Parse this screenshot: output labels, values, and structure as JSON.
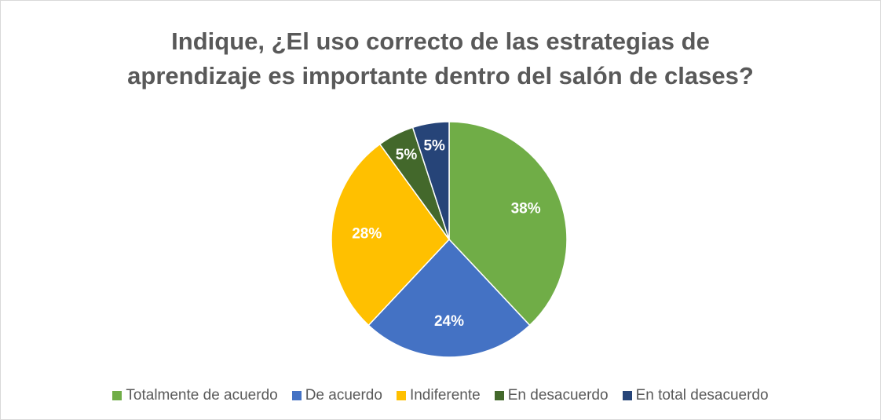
{
  "chart_data": {
    "type": "pie",
    "title": [
      "Indique, ¿El uso correcto de las estrategias de",
      "aprendizaje es importante dentro del salón de clases?"
    ],
    "categories": [
      "Totalmente de acuerdo",
      "De acuerdo",
      "Indiferente",
      "En desacuerdo",
      "En total desacuerdo"
    ],
    "values": [
      38,
      24,
      28,
      5,
      5
    ],
    "value_labels": [
      "38%",
      "24%",
      "28%",
      "5%",
      "5%"
    ],
    "colors": [
      "#70ad47",
      "#4472c4",
      "#ffc000",
      "#43682b",
      "#264478"
    ],
    "legend": "bottom"
  }
}
